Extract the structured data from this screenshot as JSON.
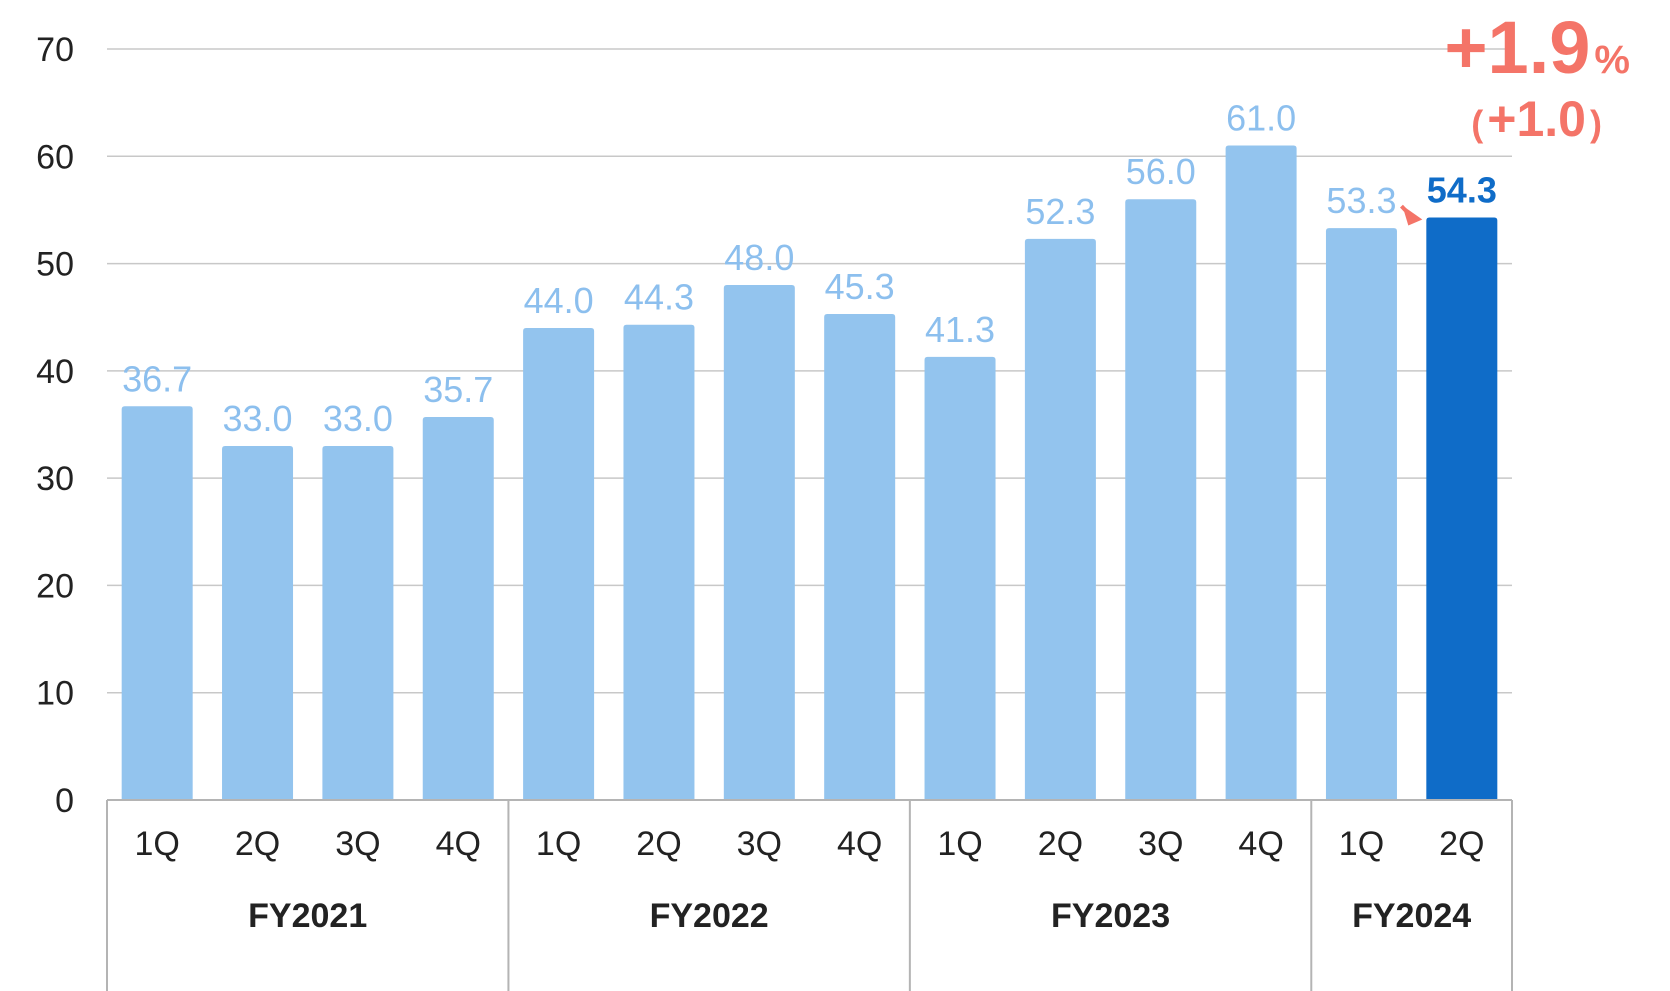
{
  "chart_data": {
    "type": "bar",
    "ylim": [
      0,
      70
    ],
    "yticks": [
      "0",
      "10",
      "20",
      "30",
      "40",
      "50",
      "60",
      "70"
    ],
    "grid": true,
    "categories": [
      "1Q",
      "2Q",
      "3Q",
      "4Q",
      "1Q",
      "2Q",
      "3Q",
      "4Q",
      "1Q",
      "2Q",
      "3Q",
      "4Q",
      "1Q",
      "2Q"
    ],
    "values": [
      36.7,
      33.0,
      33.0,
      35.7,
      44.0,
      44.3,
      48.0,
      45.3,
      41.3,
      52.3,
      56.0,
      61.0,
      53.3,
      54.3
    ],
    "value_labels": [
      "36.7",
      "33.0",
      "33.0",
      "35.7",
      "44.0",
      "44.3",
      "48.0",
      "45.3",
      "41.3",
      "52.3",
      "56.0",
      "61.0",
      "53.3",
      "54.3"
    ],
    "groups": [
      {
        "label": "FY2021",
        "count": 4
      },
      {
        "label": "FY2022",
        "count": 4
      },
      {
        "label": "FY2023",
        "count": 4
      },
      {
        "label": "FY2024",
        "count": 2
      }
    ],
    "highlight_index": 13,
    "annotation": {
      "change_percent": "+1.9",
      "percent_unit": "%",
      "change_value": "+1.0",
      "paren_open": "(",
      "paren_close": ")"
    }
  },
  "colors": {
    "bar": "#93c4ee",
    "bar_highlight": "#0f6cc8",
    "label": "#8cbfee",
    "label_highlight": "#0f6cc8",
    "annotation": "#f47468",
    "grid": "#c8c8c8",
    "axis": "#b4b4b4"
  }
}
